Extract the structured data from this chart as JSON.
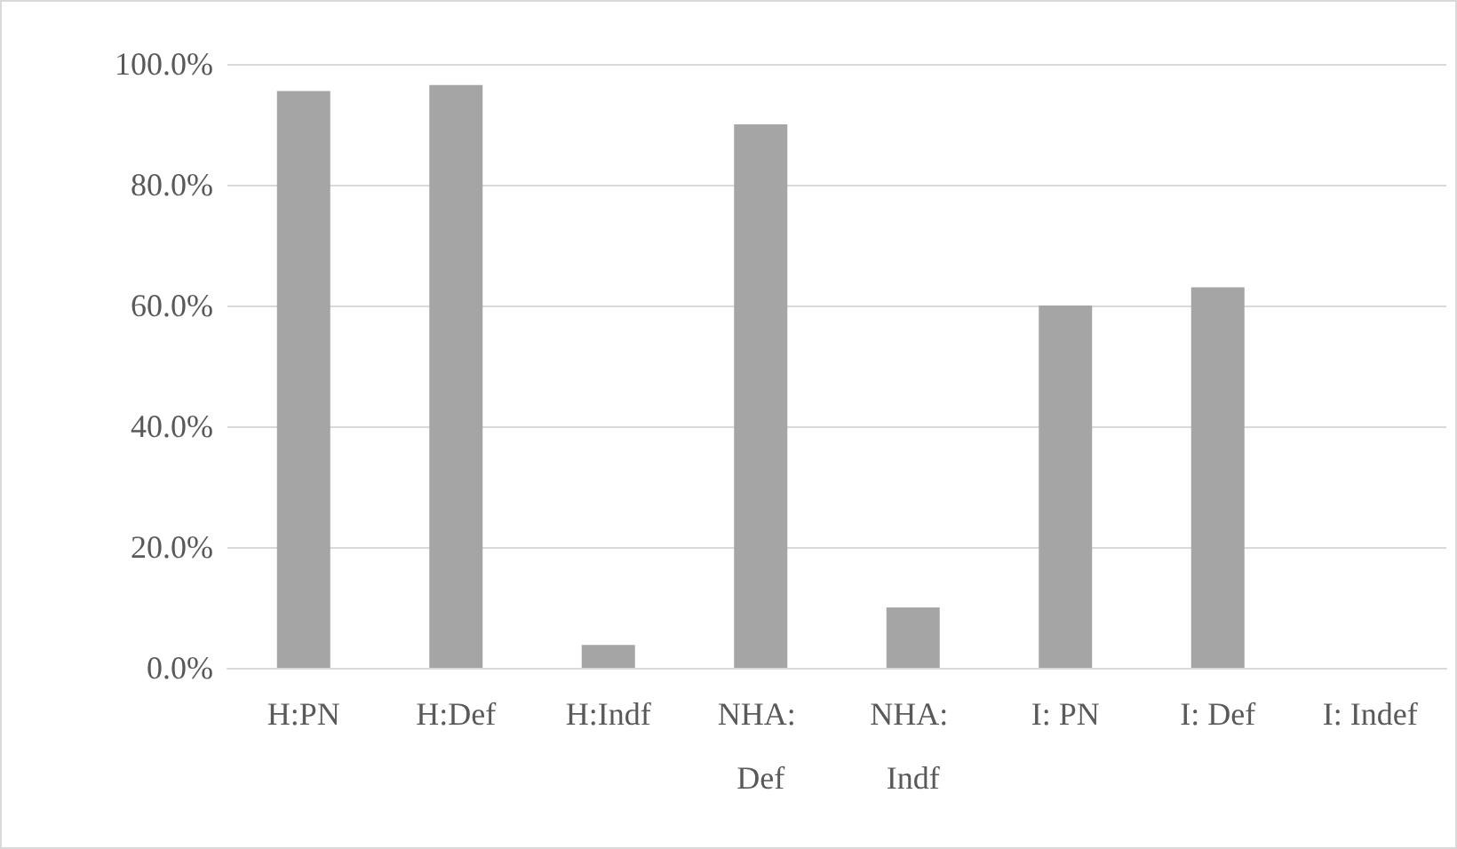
{
  "chart_data": {
    "type": "bar",
    "categories": [
      "H:PN",
      "H:Def",
      "H:Indf",
      "NHA: Def",
      "NHA: Indf",
      "I: PN",
      "I: Def",
      "I: Indef"
    ],
    "values": [
      95.5,
      96.5,
      3.8,
      90.0,
      10.0,
      60.0,
      63.0,
      0
    ],
    "color": "#a5a5a5",
    "ylim": [
      0,
      100
    ],
    "yticks": [
      {
        "value": 0,
        "label": "0.0%"
      },
      {
        "value": 20,
        "label": "20.0%"
      },
      {
        "value": 40,
        "label": "40.0%"
      },
      {
        "value": 60,
        "label": "60.0%"
      },
      {
        "value": 80,
        "label": "80.0%"
      },
      {
        "value": 100,
        "label": "100.0%"
      }
    ],
    "grid": "y"
  }
}
